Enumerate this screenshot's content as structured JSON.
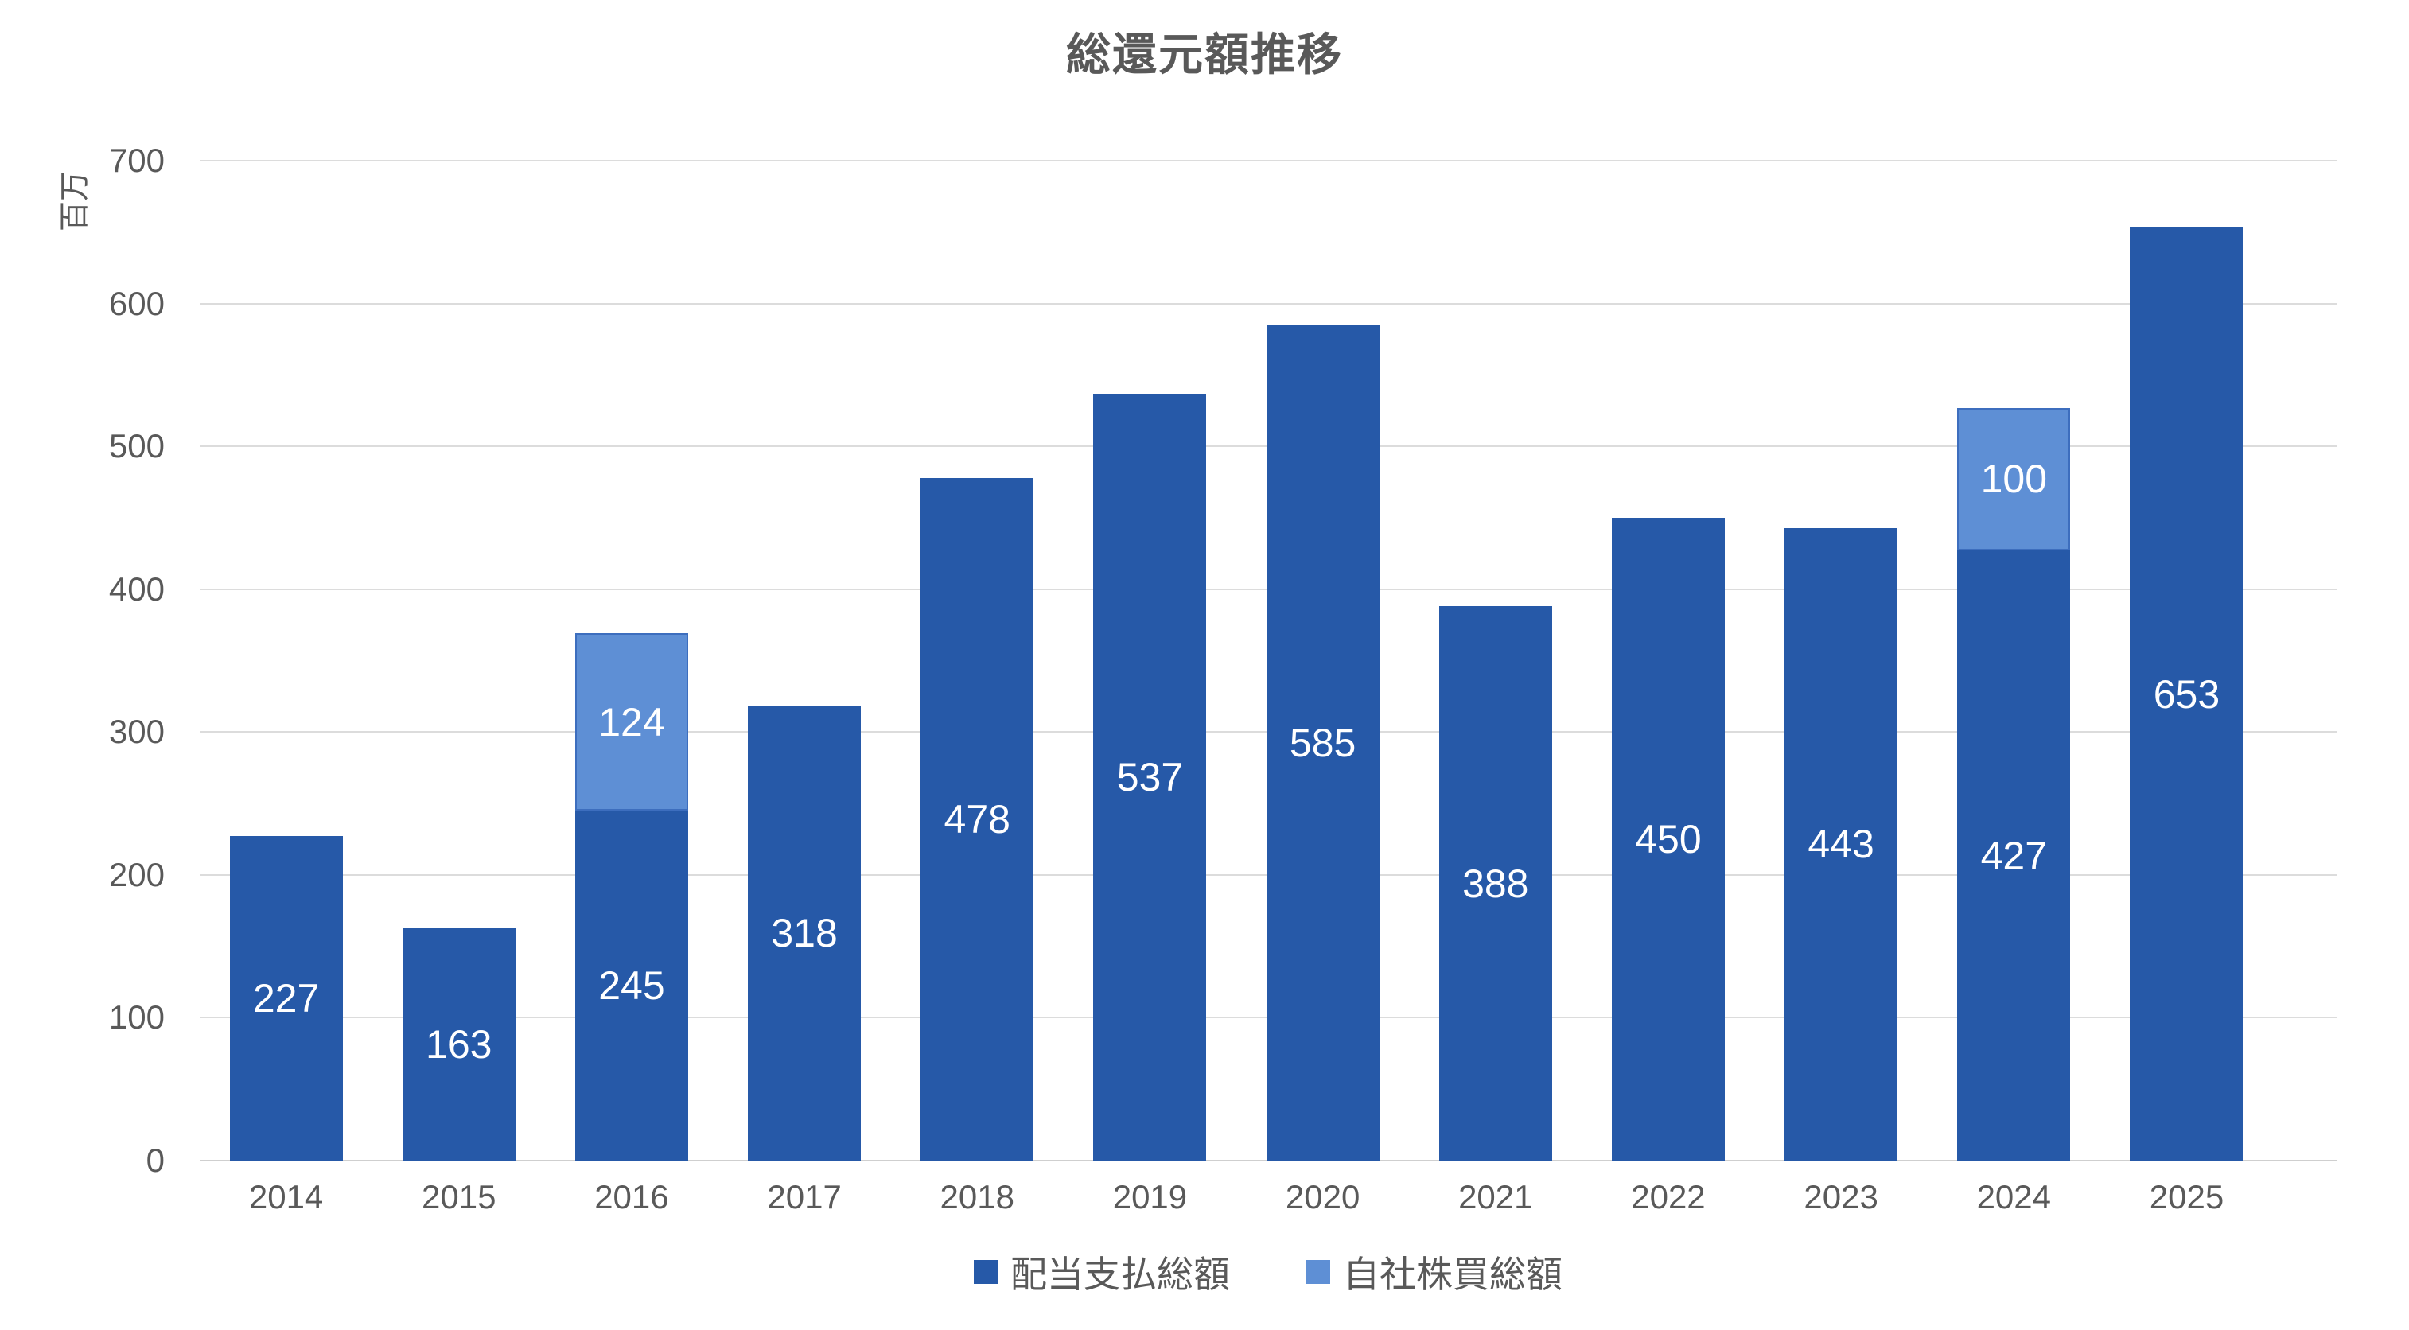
{
  "chart_data": {
    "type": "bar",
    "stacked": true,
    "title": "総還元額推移",
    "y_unit": "百万",
    "categories": [
      "2014",
      "2015",
      "2016",
      "2017",
      "2018",
      "2019",
      "2020",
      "2021",
      "2022",
      "2023",
      "2024",
      "2025"
    ],
    "series": [
      {
        "key": "dividend",
        "name": "配当支払総額",
        "color": "#2659A8",
        "values": [
          227,
          163,
          245,
          318,
          478,
          537,
          585,
          388,
          450,
          443,
          427,
          653
        ]
      },
      {
        "key": "buyback",
        "name": "自社株買総額",
        "color": "#5E8FD5",
        "border_color": "#3D6EBE",
        "values": [
          0,
          0,
          124,
          0,
          0,
          0,
          0,
          0,
          0,
          0,
          100,
          0
        ]
      }
    ],
    "ylim": [
      0,
      700
    ],
    "yticks": [
      0,
      100,
      200,
      300,
      400,
      500,
      600,
      700
    ],
    "grid": true,
    "gridline_color": "#DCDCDC",
    "axis_text_color": "#595959",
    "data_label_color": "#ffffff",
    "legend_position": "bottom"
  }
}
